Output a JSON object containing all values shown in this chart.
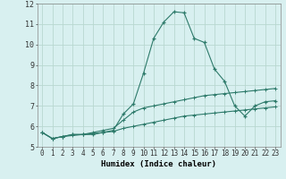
{
  "title": "",
  "xlabel": "Humidex (Indice chaleur)",
  "ylabel": "",
  "bg_color": "#d8f0f0",
  "line_color": "#2d7a6a",
  "grid_color": "#b8d8d0",
  "x_values": [
    0,
    1,
    2,
    3,
    4,
    5,
    6,
    7,
    8,
    9,
    10,
    11,
    12,
    13,
    14,
    15,
    16,
    17,
    18,
    19,
    20,
    21,
    22,
    23
  ],
  "series1": [
    5.7,
    5.4,
    5.5,
    5.6,
    5.6,
    5.6,
    5.7,
    5.8,
    6.6,
    7.1,
    8.6,
    10.3,
    11.1,
    11.6,
    11.55,
    10.3,
    10.1,
    8.8,
    8.2,
    7.0,
    6.5,
    7.0,
    7.2,
    7.25
  ],
  "series2": [
    5.7,
    5.4,
    5.5,
    5.6,
    5.6,
    5.7,
    5.8,
    5.9,
    6.3,
    6.7,
    6.9,
    7.0,
    7.1,
    7.2,
    7.3,
    7.4,
    7.5,
    7.55,
    7.6,
    7.65,
    7.7,
    7.75,
    7.8,
    7.85
  ],
  "series3": [
    5.7,
    5.4,
    5.5,
    5.55,
    5.6,
    5.65,
    5.7,
    5.75,
    5.9,
    6.0,
    6.1,
    6.2,
    6.3,
    6.4,
    6.5,
    6.55,
    6.6,
    6.65,
    6.7,
    6.75,
    6.8,
    6.85,
    6.9,
    6.95
  ],
  "ylim": [
    5,
    12
  ],
  "xlim": [
    -0.5,
    23.5
  ],
  "yticks": [
    5,
    6,
    7,
    8,
    9,
    10,
    11,
    12
  ],
  "xticks": [
    0,
    1,
    2,
    3,
    4,
    5,
    6,
    7,
    8,
    9,
    10,
    11,
    12,
    13,
    14,
    15,
    16,
    17,
    18,
    19,
    20,
    21,
    22,
    23
  ],
  "tick_fontsize": 5.5,
  "xlabel_fontsize": 6.5
}
